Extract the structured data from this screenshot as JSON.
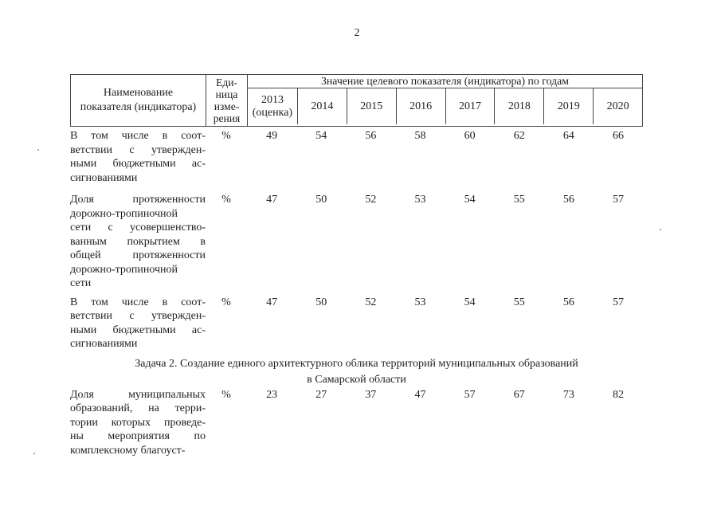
{
  "page": {
    "number": "2"
  },
  "table": {
    "header": {
      "indicator_lines": [
        "Наименование",
        "показателя (индикатора)"
      ],
      "unit_lines": [
        "Еди-",
        "ница",
        "изме-",
        "рения"
      ],
      "years_title": "Значение целевого показателя (индикатора) по годам",
      "years": [
        {
          "lines": [
            "2013",
            "(оценка)"
          ]
        },
        {
          "lines": [
            "2014"
          ]
        },
        {
          "lines": [
            "2015"
          ]
        },
        {
          "lines": [
            "2016"
          ]
        },
        {
          "lines": [
            "2017"
          ]
        },
        {
          "lines": [
            "2018"
          ]
        },
        {
          "lines": [
            "2019"
          ]
        },
        {
          "lines": [
            "2020"
          ]
        }
      ]
    },
    "rows": [
      {
        "type": "data",
        "name_lines": [
          "В том числе в соот-",
          "ветствии с утвержден-",
          "ными бюджетными ас-",
          "сигнованиями"
        ],
        "unit": "%",
        "values": [
          "49",
          "54",
          "56",
          "58",
          "60",
          "62",
          "64",
          "66"
        ]
      },
      {
        "type": "data",
        "name_lines": [
          "Доля протяженности",
          "дорожно-тропиночной",
          "сети с усовершенство-",
          "ванным покрытием в",
          "общей протяженности",
          "дорожно-тропиночной",
          "сети"
        ],
        "unit": "%",
        "values": [
          "47",
          "50",
          "52",
          "53",
          "54",
          "55",
          "56",
          "57"
        ]
      },
      {
        "type": "data",
        "name_lines": [
          "В том числе в соот-",
          "ветствии с утвержден-",
          "ными бюджетными ас-",
          "сигнованиями"
        ],
        "unit": "%",
        "values": [
          "47",
          "50",
          "52",
          "53",
          "54",
          "55",
          "56",
          "57"
        ]
      },
      {
        "type": "section",
        "lines": [
          "Задача 2. Создание единого архитектурного облика территорий муниципальных образований",
          "в Самарской области"
        ]
      },
      {
        "type": "data",
        "name_lines": [
          "Доля муниципальных",
          "образований, на терри-",
          "тории которых проведе-",
          "ны мероприятия по",
          "комплексному благоуст-"
        ],
        "unit": "%",
        "values": [
          "23",
          "27",
          "37",
          "47",
          "57",
          "67",
          "73",
          "82"
        ]
      }
    ]
  }
}
